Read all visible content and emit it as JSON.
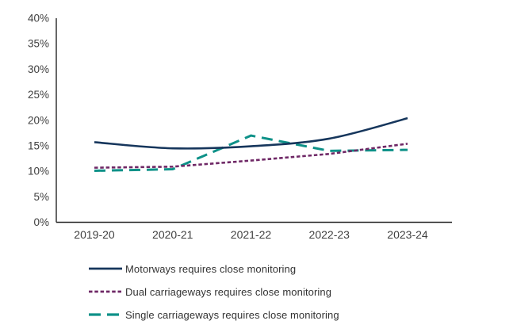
{
  "chart_data": {
    "type": "line",
    "title": "",
    "categories": [
      "2019-20",
      "2020-21",
      "2021-22",
      "2022-23",
      "2023-24"
    ],
    "series": [
      {
        "name": "Motorways requires close monitoring",
        "values": [
          15.7,
          14.5,
          14.9,
          16.4,
          20.4
        ],
        "color": "#16365C",
        "line_style": "solid",
        "smooth": true
      },
      {
        "name": "Dual carriageways requires close monitoring",
        "values": [
          10.7,
          10.9,
          12.1,
          13.4,
          15.4
        ],
        "color": "#6F2866",
        "line_style": "short-dash",
        "smooth": false
      },
      {
        "name": "Single carriageways requires close monitoring",
        "values": [
          10.1,
          10.4,
          17.0,
          14.0,
          14.2
        ],
        "color": "#0E9188",
        "line_style": "long-dash",
        "smooth": false
      }
    ],
    "y_axis": {
      "ticks": [
        "0%",
        "5%",
        "10%",
        "15%",
        "20%",
        "25%",
        "30%",
        "35%",
        "40%"
      ],
      "min": 0,
      "max": 40,
      "step": 5,
      "unit": "%"
    },
    "x_axis": {
      "ticks": [
        "2019-20",
        "2020-21",
        "2021-22",
        "2022-23",
        "2023-24"
      ]
    },
    "grid": false,
    "legend_position": "bottom-left"
  },
  "colors": {
    "axis_line": "#262626",
    "tick_label": "#3F3F3F",
    "legend_text": "#333333",
    "background": "#FFFFFF"
  }
}
